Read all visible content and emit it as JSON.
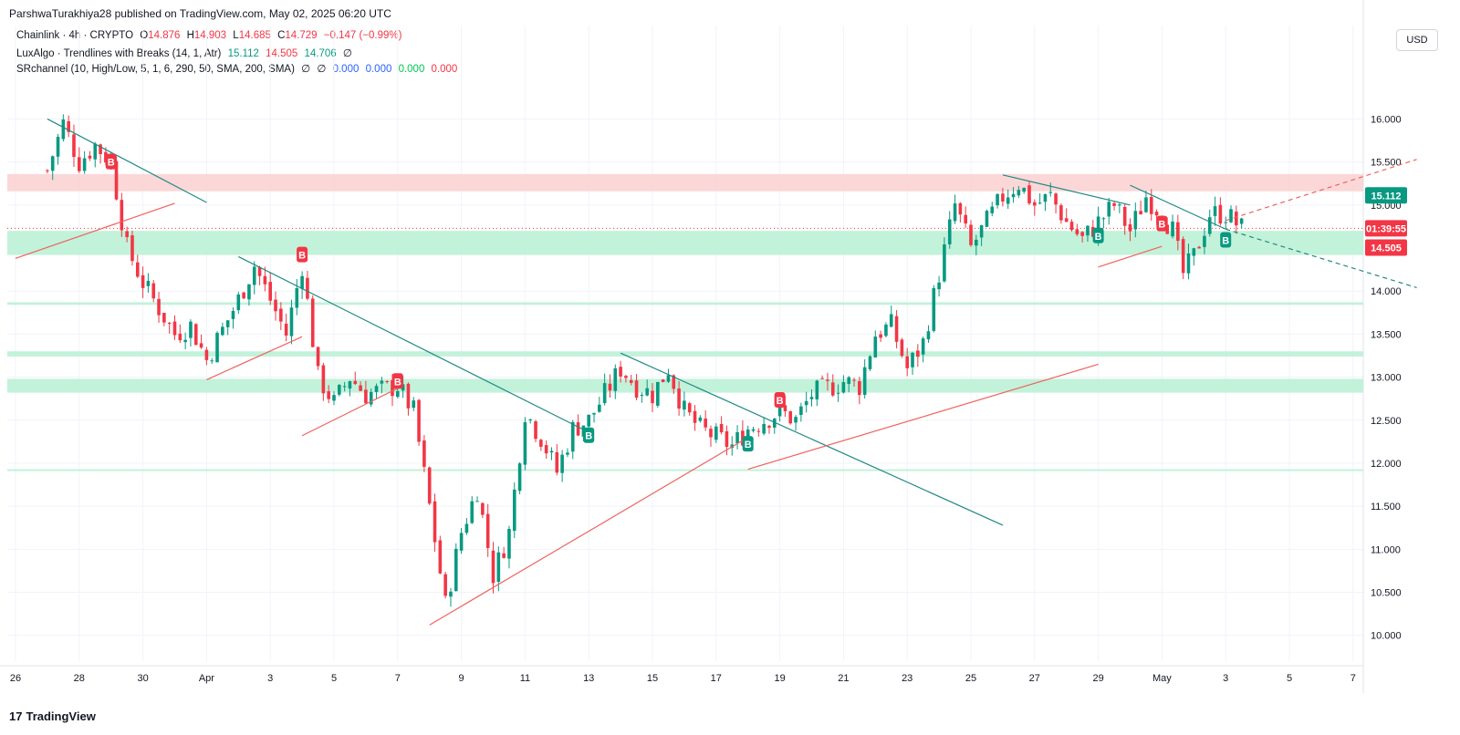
{
  "header": {
    "published": "ParshwaTurakhiya28 published on TradingView.com, May 02, 2025 06:20 UTC"
  },
  "legend": {
    "symbol": "Chainlink · 4h · CRYPTO",
    "open_label": "O",
    "open": "14.876",
    "high_label": "H",
    "high": "14.903",
    "low_label": "L",
    "low": "14.685",
    "close_label": "C",
    "close": "14.729",
    "change": "−0.147 (−0.99%)",
    "ind1_name": "LuxAlgo · Trendlines with Breaks (14, 1, Atr)",
    "ind1_v1": "15.112",
    "ind1_v2": "14.505",
    "ind1_v3": "14.706",
    "ind1_v4": "∅",
    "ind2_name": "SRchannel (10, High/Low, 5, 1, 6, 290, 50, SMA, 200, SMA)",
    "ind2_e1": "∅",
    "ind2_e2": "∅",
    "ind2_v1": "0.000",
    "ind2_v2": "0.000",
    "ind2_v3": "0.000",
    "ind2_v4": "0.000"
  },
  "currency": "USD",
  "footer": {
    "brand": "TradingView",
    "logo": "17"
  },
  "colors": {
    "up": "#089981",
    "down": "#f23645",
    "trend_down": "#1f8a84",
    "trend_up": "#f0625e",
    "support_zone": "#b7f0d3",
    "resistance_zone": "#fcd0d1",
    "grid": "#f0f3fa"
  },
  "chart_data": {
    "type": "candlestick",
    "y_ticks": [
      "16.000",
      "15.500",
      "15.000",
      "14.500",
      "14.000",
      "13.500",
      "13.000",
      "12.500",
      "12.000",
      "11.500",
      "11.000",
      "10.500",
      "10.000"
    ],
    "ylim": [
      9.7,
      16.45
    ],
    "x_ticks": [
      "26",
      "28",
      "30",
      "Apr",
      "3",
      "5",
      "7",
      "9",
      "11",
      "13",
      "15",
      "17",
      "19",
      "21",
      "23",
      "25",
      "27",
      "29",
      "May",
      "3",
      "5",
      "7"
    ],
    "price_labels": {
      "upper": "15.112",
      "countdown": "01:39:55",
      "lower": "14.505"
    },
    "current_price": 14.729,
    "sr_zones": [
      {
        "kind": "resistance",
        "top": 15.36,
        "bottom": 15.16
      },
      {
        "kind": "support",
        "top": 14.7,
        "bottom": 14.42
      },
      {
        "kind": "support",
        "top": 13.87,
        "bottom": 13.84
      },
      {
        "kind": "support",
        "top": 13.3,
        "bottom": 13.24
      },
      {
        "kind": "support",
        "top": 12.98,
        "bottom": 12.82
      },
      {
        "kind": "support",
        "top": 11.93,
        "bottom": 11.91
      }
    ],
    "trendlines": [
      {
        "kind": "down",
        "from": [
          "Mar 26",
          16.0
        ],
        "to": [
          "Mar 31",
          15.03
        ]
      },
      {
        "kind": "up",
        "from": [
          "Mar 25",
          14.38
        ],
        "to": [
          "Mar 30",
          15.02
        ]
      },
      {
        "kind": "up",
        "from": [
          "Mar 31",
          12.97
        ],
        "to": [
          "Apr 3",
          13.47
        ]
      },
      {
        "kind": "down",
        "from": [
          "Apr 1",
          14.4
        ],
        "to": [
          "Apr 12",
          12.36
        ]
      },
      {
        "kind": "up",
        "from": [
          "Apr 3",
          12.32
        ],
        "to": [
          "Apr 6",
          12.87
        ]
      },
      {
        "kind": "up",
        "from": [
          "Apr 7",
          10.12
        ],
        "to": [
          "Apr 17",
          12.3
        ]
      },
      {
        "kind": "down",
        "from": [
          "Apr 13",
          13.28
        ],
        "to": [
          "Apr 25",
          11.28
        ]
      },
      {
        "kind": "up",
        "from": [
          "Apr 17",
          11.93
        ],
        "to": [
          "Apr 28",
          13.15
        ]
      },
      {
        "kind": "down",
        "from": [
          "Apr 25",
          15.35
        ],
        "to": [
          "Apr 29",
          15.0
        ]
      },
      {
        "kind": "up",
        "from": [
          "Apr 28",
          14.28
        ],
        "to": [
          "Apr 30",
          14.52
        ]
      },
      {
        "kind": "down",
        "from": [
          "Apr 29",
          15.23
        ],
        "to": [
          "May 2",
          14.72
        ]
      },
      {
        "kind": "down_projection",
        "from": [
          "May 2",
          14.72
        ],
        "to": [
          "May 8",
          14.04
        ]
      },
      {
        "kind": "up_projection",
        "from": [
          "May 2",
          14.82
        ],
        "to": [
          "May 8",
          15.53
        ]
      }
    ],
    "break_labels": [
      {
        "text": "B",
        "kind": "down",
        "at": [
          "Mar 28",
          15.5
        ]
      },
      {
        "text": "B",
        "kind": "down",
        "at": [
          "Apr 3",
          14.42
        ]
      },
      {
        "text": "B",
        "kind": "down",
        "at": [
          "Apr 6",
          12.95
        ]
      },
      {
        "text": "B",
        "kind": "up",
        "at": [
          "Apr 12",
          12.32
        ]
      },
      {
        "text": "B",
        "kind": "up",
        "at": [
          "Apr 17",
          12.22
        ]
      },
      {
        "text": "B",
        "kind": "down",
        "at": [
          "Apr 18",
          12.73
        ]
      },
      {
        "text": "B",
        "kind": "up",
        "at": [
          "Apr 28",
          14.64
        ]
      },
      {
        "text": "B",
        "kind": "down",
        "at": [
          "Apr 30",
          14.78
        ]
      },
      {
        "text": "B",
        "kind": "up",
        "at": [
          "May 2",
          14.59
        ]
      }
    ],
    "x_dates": [
      "Mar 25",
      "Mar 26",
      "Mar 27",
      "Mar 28",
      "Mar 29",
      "Mar 30",
      "Mar 31",
      "Apr 1",
      "Apr 2",
      "Apr 3",
      "Apr 4",
      "Apr 5",
      "Apr 6",
      "Apr 7",
      "Apr 8",
      "Apr 9",
      "Apr 10",
      "Apr 11",
      "Apr 12",
      "Apr 13",
      "Apr 14",
      "Apr 15",
      "Apr 16",
      "Apr 17",
      "Apr 18",
      "Apr 19",
      "Apr 20",
      "Apr 21",
      "Apr 22",
      "Apr 23",
      "Apr 24",
      "Apr 25",
      "Apr 26",
      "Apr 27",
      "Apr 28",
      "Apr 29",
      "Apr 30",
      "May 1",
      "May 2",
      "May 3",
      "May 4",
      "May 5",
      "May 6",
      "May 7",
      "May 8"
    ],
    "close_path": [
      [
        "Mar 26",
        15.4
      ],
      [
        "Mar 26",
        15.95
      ],
      [
        "Mar 27",
        15.5
      ],
      [
        "Mar 27",
        15.7
      ],
      [
        "Mar 28",
        15.5
      ],
      [
        "Mar 28",
        14.5
      ],
      [
        "Mar 29",
        14.1
      ],
      [
        "Mar 30",
        13.5
      ],
      [
        "Mar 30",
        13.6
      ],
      [
        "Mar 31",
        13.2
      ],
      [
        "Apr 1",
        13.9
      ],
      [
        "Apr 1",
        14.3
      ],
      [
        "Apr 2",
        13.9
      ],
      [
        "Apr 2",
        13.5
      ],
      [
        "Apr 3",
        14.3
      ],
      [
        "Apr 3",
        13.0
      ],
      [
        "Apr 4",
        12.7
      ],
      [
        "Apr 4",
        13.0
      ],
      [
        "Apr 5",
        12.8
      ],
      [
        "Apr 6",
        12.9
      ],
      [
        "Apr 6",
        12.6
      ],
      [
        "Apr 7",
        11.5
      ],
      [
        "Apr 7",
        10.35
      ],
      [
        "Apr 8",
        11.2
      ],
      [
        "Apr 8",
        11.7
      ],
      [
        "Apr 9",
        10.7
      ],
      [
        "Apr 9",
        11.2
      ],
      [
        "Apr 10",
        12.6
      ],
      [
        "Apr 10",
        12.3
      ],
      [
        "Apr 11",
        11.9
      ],
      [
        "Apr 11",
        12.4
      ],
      [
        "Apr 12",
        12.5
      ],
      [
        "Apr 12",
        12.8
      ],
      [
        "Apr 13",
        13.1
      ],
      [
        "Apr 13",
        12.9
      ],
      [
        "Apr 14",
        12.8
      ],
      [
        "Apr 14",
        13.1
      ],
      [
        "Apr 15",
        12.6
      ],
      [
        "Apr 15",
        12.4
      ],
      [
        "Apr 16",
        12.3
      ],
      [
        "Apr 16",
        12.2
      ],
      [
        "Apr 17",
        12.4
      ],
      [
        "Apr 17",
        12.5
      ],
      [
        "Apr 18",
        12.6
      ],
      [
        "Apr 18",
        12.5
      ],
      [
        "Apr 19",
        12.8
      ],
      [
        "Apr 20",
        12.95
      ],
      [
        "Apr 20",
        12.9
      ],
      [
        "Apr 21",
        13.5
      ],
      [
        "Apr 21",
        13.6
      ],
      [
        "Apr 22",
        13.1
      ],
      [
        "Apr 22",
        13.4
      ],
      [
        "Apr 23",
        14.2
      ],
      [
        "Apr 23",
        15.0
      ],
      [
        "Apr 24",
        14.5
      ],
      [
        "Apr 24",
        14.8
      ],
      [
        "Apr 25",
        15.1
      ],
      [
        "Apr 25",
        15.25
      ],
      [
        "Apr 26",
        15.0
      ],
      [
        "Apr 26",
        15.1
      ],
      [
        "Apr 27",
        14.8
      ],
      [
        "Apr 27",
        14.6
      ],
      [
        "Apr 28",
        14.8
      ],
      [
        "Apr 28",
        15.0
      ],
      [
        "Apr 29",
        14.7
      ],
      [
        "Apr 29",
        15.1
      ],
      [
        "Apr 30",
        14.9
      ],
      [
        "Apr 30",
        14.7
      ],
      [
        "Apr 30",
        14.2
      ],
      [
        "May 1",
        14.4
      ],
      [
        "May 1",
        14.9
      ],
      [
        "May 2",
        14.9
      ],
      [
        "May 2",
        14.73
      ]
    ]
  }
}
